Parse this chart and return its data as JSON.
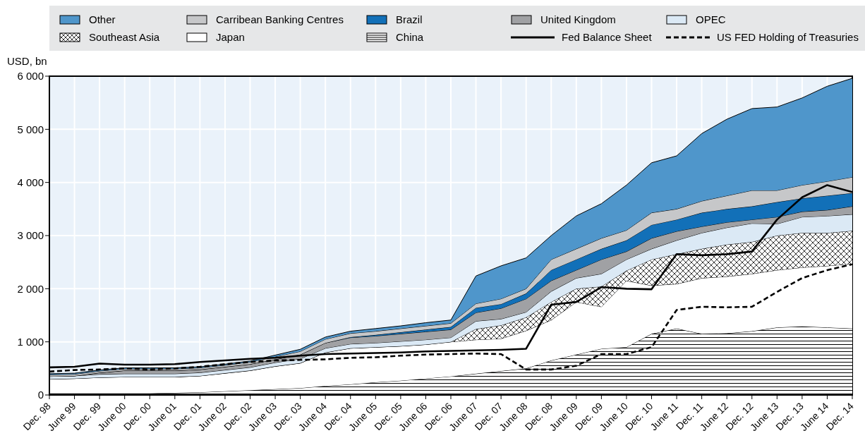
{
  "chart_data": {
    "type": "area",
    "stacked": true,
    "ylabel": "USD, bn",
    "categories": [
      "Dec. 98",
      "June 99",
      "Dec. 99",
      "June 00",
      "Dec. 00",
      "June 01",
      "Dec. 01",
      "June 02",
      "Dec. 02",
      "June 03",
      "Dec. 03",
      "June 04",
      "Dec. 04",
      "June 05",
      "Dec. 05",
      "June 06",
      "Dec. 06",
      "June 07",
      "Dec. 07",
      "June 08",
      "Dec. 08",
      "June 09",
      "Dec. 09",
      "June 10",
      "Dec. 10",
      "June 11",
      "Dec. 11",
      "June 12",
      "Dec. 12",
      "June 13",
      "Dec. 13",
      "June 14",
      "Dec. 14"
    ],
    "series": [
      {
        "name": "China",
        "color": "#000000",
        "values": [
          30,
          30,
          30,
          30,
          30,
          40,
          50,
          70,
          90,
          110,
          130,
          170,
          200,
          240,
          270,
          310,
          350,
          400,
          450,
          500,
          650,
          760,
          870,
          900,
          1150,
          1250,
          1150,
          1160,
          1200,
          1270,
          1290,
          1270,
          1250
        ]
      },
      {
        "name": "Japan",
        "color": "#ffffff",
        "values": [
          270,
          280,
          300,
          310,
          310,
          300,
          310,
          340,
          370,
          430,
          470,
          630,
          680,
          660,
          650,
          640,
          650,
          640,
          610,
          710,
          760,
          990,
          790,
          1250,
          910,
          840,
          1050,
          1070,
          1080,
          1080,
          1110,
          1160,
          1220
        ]
      },
      {
        "name": "Southeast Asia",
        "color": "#000000",
        "values": [
          0,
          0,
          0,
          0,
          0,
          0,
          0,
          0,
          0,
          0,
          0,
          0,
          0,
          0,
          0,
          0,
          0,
          200,
          250,
          250,
          340,
          250,
          380,
          190,
          490,
          560,
          550,
          600,
          600,
          650,
          650,
          620,
          620
        ]
      },
      {
        "name": "OPEC",
        "color": "#dbe9f5",
        "values": [
          50,
          50,
          60,
          60,
          60,
          60,
          60,
          60,
          60,
          70,
          80,
          80,
          80,
          80,
          90,
          90,
          80,
          150,
          120,
          100,
          200,
          200,
          240,
          210,
          200,
          260,
          300,
          320,
          350,
          220,
          300,
          320,
          310
        ]
      },
      {
        "name": "United Kingdom",
        "color": "#a0a1a4",
        "values": [
          0,
          0,
          30,
          60,
          60,
          60,
          60,
          60,
          60,
          60,
          80,
          100,
          120,
          130,
          140,
          150,
          150,
          160,
          200,
          250,
          200,
          150,
          270,
          150,
          200,
          170,
          120,
          100,
          70,
          130,
          100,
          110,
          150
        ]
      },
      {
        "name": "Brazil",
        "color": "#1270b8",
        "values": [
          0,
          0,
          0,
          0,
          0,
          0,
          0,
          0,
          0,
          0,
          0,
          0,
          10,
          20,
          30,
          40,
          50,
          90,
          80,
          100,
          200,
          200,
          200,
          210,
          250,
          220,
          260,
          250,
          250,
          280,
          250,
          270,
          250
        ]
      },
      {
        "name": "Carribean Banking Centres",
        "color": "#c6c7c9",
        "values": [
          30,
          30,
          30,
          30,
          30,
          30,
          30,
          30,
          40,
          50,
          60,
          70,
          70,
          70,
          70,
          70,
          70,
          80,
          100,
          90,
          200,
          200,
          200,
          190,
          230,
          200,
          220,
          250,
          300,
          220,
          250,
          270,
          300
        ]
      },
      {
        "name": "Other",
        "color": "#4f96cb",
        "values": [
          20,
          20,
          20,
          20,
          20,
          20,
          20,
          20,
          20,
          30,
          40,
          40,
          40,
          50,
          50,
          60,
          60,
          520,
          620,
          580,
          450,
          620,
          650,
          850,
          940,
          1000,
          1270,
          1440,
          1540,
          1570,
          1640,
          1790,
          1860
        ]
      },
      {
        "name": "Fed Balance Sheet",
        "type": "line",
        "color": "#000000",
        "line_style": "solid",
        "values": [
          520,
          530,
          590,
          570,
          570,
          580,
          620,
          650,
          680,
          700,
          740,
          770,
          780,
          790,
          800,
          820,
          830,
          840,
          850,
          870,
          1700,
          1750,
          2030,
          2000,
          1990,
          2650,
          2630,
          2650,
          2700,
          3300,
          3720,
          3950,
          3820
        ]
      },
      {
        "name": "US FED Holding of Treasuries",
        "type": "line",
        "color": "#000000",
        "line_style": "dashed",
        "values": [
          440,
          470,
          480,
          500,
          480,
          500,
          530,
          580,
          620,
          650,
          660,
          670,
          700,
          710,
          740,
          760,
          770,
          780,
          770,
          480,
          480,
          550,
          770,
          770,
          900,
          1600,
          1660,
          1650,
          1660,
          1940,
          2200,
          2350,
          2460
        ]
      }
    ],
    "ylim": [
      0,
      6000
    ],
    "yticks": [
      0,
      {
        "value": 1000,
        "label": "1 000"
      },
      {
        "value": 2000,
        "label": "2 000"
      },
      {
        "value": 3000,
        "label": "3 000"
      },
      {
        "value": 4000,
        "label": "4 000"
      },
      {
        "value": 5000,
        "label": "5 000"
      },
      {
        "value": 6000,
        "label": "6 000"
      }
    ],
    "grid": true,
    "legend": "top",
    "marker": "none"
  }
}
